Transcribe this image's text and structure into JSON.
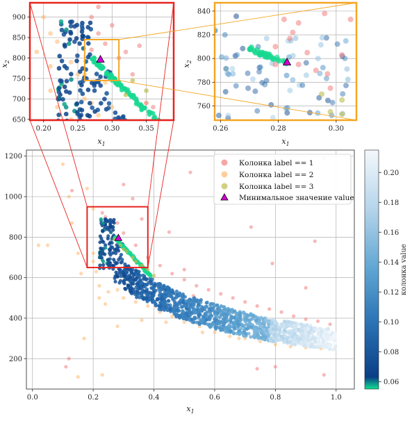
{
  "chart_data": {
    "type": "scatter",
    "colors": {
      "label1": "#f08080",
      "label2": "#ffb870",
      "label3": "#bcbc50",
      "marker": "#d400d4",
      "inset_frame_left": "#e8231f",
      "inset_frame_right": "#f5a623",
      "cmap": [
        "#10e090",
        "#0a3f86",
        "#2b73b5",
        "#5fa5d2",
        "#b4d4ea",
        "#f4f8fc"
      ]
    },
    "main": {
      "xlabel": "x1",
      "xlim": [
        -0.02,
        1.06
      ],
      "ylim": [
        50,
        1230
      ],
      "xticks": [
        0.0,
        0.2,
        0.4,
        0.6,
        0.8,
        1.0
      ],
      "xtick_labels": [
        "0.0",
        "0.2",
        "0.4",
        "0.6",
        "0.8",
        "1.0"
      ],
      "yticks": [
        200,
        400,
        600,
        800,
        1000,
        1200
      ],
      "ytick_labels": [
        "200",
        "400",
        "600",
        "800",
        "1000",
        "1200"
      ],
      "grid": true
    },
    "inset_left": {
      "xlabel": "x1",
      "ylabel": "x2",
      "xlim": [
        0.18,
        0.39
      ],
      "ylim": [
        648,
        935
      ],
      "xticks": [
        0.2,
        0.25,
        0.3,
        0.35
      ],
      "xtick_labels": [
        "0.20",
        "0.25",
        "0.30",
        "0.35"
      ],
      "yticks": [
        650,
        700,
        750,
        800,
        850,
        900
      ],
      "ytick_labels": [
        "650",
        "700",
        "750",
        "800",
        "850",
        "900"
      ]
    },
    "inset_right": {
      "xlabel": "x1",
      "ylabel": "x2",
      "xlim": [
        0.258,
        0.307
      ],
      "ylim": [
        748,
        847
      ],
      "xticks": [
        0.26,
        0.28,
        0.3
      ],
      "xtick_labels": [
        "0.26",
        "0.28",
        "0.30"
      ],
      "yticks": [
        760,
        780,
        800,
        820,
        840
      ],
      "ytick_labels": [
        "760",
        "780",
        "800",
        "820",
        "840"
      ]
    },
    "zoom_regions": {
      "left_inset_box": {
        "x": [
          0.18,
          0.38
        ],
        "y": [
          650,
          950
        ]
      },
      "right_inset_box": {
        "x": [
          0.26,
          0.31
        ],
        "y": [
          745,
          845
        ]
      }
    },
    "minimum": {
      "x": 0.283,
      "y": 797,
      "label": "Минимальное значение value"
    },
    "legend": {
      "placement": "top-right",
      "entries": [
        "Колонка label == 1",
        "Колонка label == 2",
        "Колонка label == 3",
        "Минимальное значение value"
      ]
    },
    "colorbar": {
      "label": "колонка value",
      "range": [
        0.055,
        0.215
      ],
      "ticks": [
        0.06,
        0.08,
        0.1,
        0.12,
        0.14,
        0.16,
        0.18,
        0.2
      ],
      "tick_labels": [
        "0.06",
        "0.08",
        "0.10",
        "0.12",
        "0.14",
        "0.16",
        "0.18",
        "0.20"
      ]
    },
    "points_label1": [
      [
        0.23,
        920
      ],
      [
        0.28,
        870
      ],
      [
        0.33,
        990
      ],
      [
        0.36,
        890
      ],
      [
        0.45,
        825
      ],
      [
        0.5,
        640
      ],
      [
        0.53,
        510
      ],
      [
        0.62,
        990
      ],
      [
        0.67,
        1070
      ],
      [
        0.72,
        850
      ],
      [
        0.79,
        670
      ],
      [
        0.9,
        550
      ],
      [
        0.93,
        780
      ],
      [
        0.96,
        1190
      ],
      [
        0.13,
        1030
      ],
      [
        0.3,
        1060
      ],
      [
        0.24,
        900
      ],
      [
        0.26,
        880
      ],
      [
        0.3,
        820
      ],
      [
        0.34,
        760
      ],
      [
        0.38,
        700
      ],
      [
        0.42,
        660
      ],
      [
        0.46,
        620
      ],
      [
        0.5,
        590
      ],
      [
        0.54,
        560
      ],
      [
        0.58,
        540
      ],
      [
        0.62,
        520
      ],
      [
        0.66,
        500
      ],
      [
        0.7,
        480
      ],
      [
        0.74,
        460
      ],
      [
        0.78,
        445
      ],
      [
        0.82,
        430
      ],
      [
        0.86,
        410
      ],
      [
        0.9,
        395
      ],
      [
        0.94,
        385
      ],
      [
        0.98,
        370
      ],
      [
        0.11,
        160
      ],
      [
        0.12,
        200
      ],
      [
        0.8,
        160
      ],
      [
        0.96,
        120
      ],
      [
        0.52,
        1120
      ],
      [
        0.74,
        150
      ]
    ],
    "points_label2": [
      [
        0.02,
        760
      ],
      [
        0.05,
        760
      ],
      [
        0.1,
        1160
      ],
      [
        0.12,
        1000
      ],
      [
        0.13,
        870
      ],
      [
        0.15,
        720
      ],
      [
        0.16,
        620
      ],
      [
        0.17,
        300
      ],
      [
        0.15,
        110
      ],
      [
        0.2,
        680
      ],
      [
        0.2,
        720
      ],
      [
        0.21,
        630
      ],
      [
        0.22,
        560
      ],
      [
        0.22,
        500
      ],
      [
        0.25,
        530
      ],
      [
        0.24,
        470
      ],
      [
        0.28,
        540
      ],
      [
        0.3,
        500
      ],
      [
        0.34,
        480
      ],
      [
        0.38,
        460
      ],
      [
        0.42,
        430
      ],
      [
        0.46,
        410
      ],
      [
        0.5,
        380
      ],
      [
        0.55,
        360
      ],
      [
        0.6,
        330
      ],
      [
        0.65,
        310
      ],
      [
        0.7,
        300
      ],
      [
        0.75,
        285
      ],
      [
        0.8,
        270
      ],
      [
        0.85,
        260
      ],
      [
        0.9,
        255
      ],
      [
        0.95,
        250
      ],
      [
        0.99,
        245
      ],
      [
        0.18,
        1040
      ],
      [
        0.2,
        940
      ],
      [
        0.23,
        120
      ],
      [
        0.28,
        360
      ],
      [
        0.36,
        390
      ],
      [
        0.44,
        380
      ],
      [
        0.56,
        330
      ],
      [
        0.68,
        300
      ],
      [
        0.8,
        300
      ],
      [
        0.9,
        280
      ]
    ],
    "points_label3": [
      [
        0.3,
        740
      ],
      [
        0.34,
        680
      ],
      [
        0.38,
        640
      ],
      [
        0.33,
        700
      ],
      [
        0.31,
        730
      ],
      [
        0.36,
        660
      ],
      [
        0.4,
        610
      ],
      [
        0.29,
        760
      ],
      [
        0.27,
        790
      ]
    ],
    "left_inset_points_label1": [
      [
        0.28,
        925
      ],
      [
        0.27,
        900
      ],
      [
        0.28,
        860
      ],
      [
        0.3,
        880
      ],
      [
        0.29,
        835
      ],
      [
        0.34,
        830
      ],
      [
        0.32,
        815
      ],
      [
        0.33,
        760
      ],
      [
        0.27,
        820
      ],
      [
        0.31,
        800
      ],
      [
        0.35,
        690
      ],
      [
        0.36,
        680
      ]
    ],
    "left_inset_points_label2": [
      [
        0.19,
        815
      ],
      [
        0.21,
        780
      ],
      [
        0.21,
        720
      ],
      [
        0.22,
        680
      ],
      [
        0.24,
        650
      ],
      [
        0.23,
        730
      ],
      [
        0.26,
        700
      ],
      [
        0.27,
        690
      ],
      [
        0.28,
        660
      ],
      [
        0.3,
        680
      ],
      [
        0.24,
        790
      ],
      [
        0.22,
        840
      ],
      [
        0.21,
        860
      ],
      [
        0.2,
        900
      ],
      [
        0.25,
        760
      ],
      [
        0.29,
        740
      ],
      [
        0.35,
        690
      ],
      [
        0.26,
        760
      ]
    ],
    "left_inset_points_label3": [
      [
        0.33,
        745
      ],
      [
        0.35,
        720
      ],
      [
        0.32,
        710
      ]
    ],
    "right_inset_points_label1": [
      [
        0.282,
        833
      ],
      [
        0.287,
        830
      ],
      [
        0.296,
        838
      ],
      [
        0.302,
        803
      ],
      [
        0.287,
        795
      ],
      [
        0.29,
        805
      ],
      [
        0.293,
        790
      ],
      [
        0.297,
        787
      ],
      [
        0.298,
        775
      ],
      [
        0.284,
        817
      ],
      [
        0.279,
        810
      ],
      [
        0.285,
        822
      ],
      [
        0.305,
        833
      ],
      [
        0.279,
        795
      ]
    ],
    "right_inset_points_label3": [
      [
        0.295,
        770
      ],
      [
        0.298,
        755
      ],
      [
        0.302,
        753
      ],
      [
        0.302,
        765
      ]
    ]
  }
}
